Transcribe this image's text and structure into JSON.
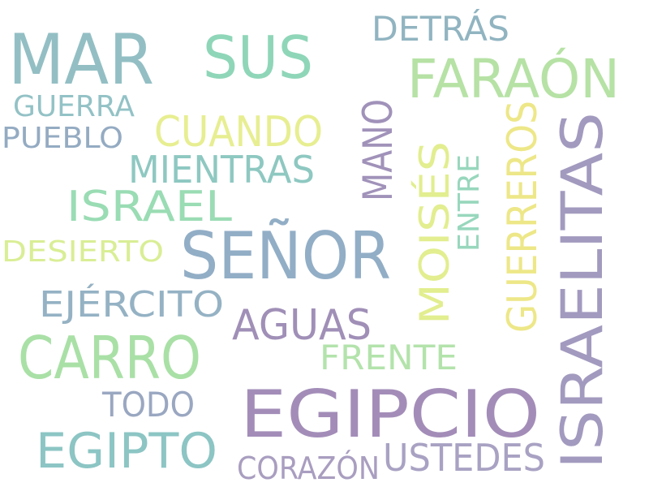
{
  "words": [
    {
      "text": "MAR",
      "color": "#93bfc4"
    },
    {
      "text": "SUS",
      "color": "#8fd6b8"
    },
    {
      "text": "DETRÁS",
      "color": "#91b4c1"
    },
    {
      "text": "FARAÓN",
      "color": "#b6e2a5"
    },
    {
      "text": "GUERRA",
      "color": "#93c2c6"
    },
    {
      "text": "PUEBLO",
      "color": "#94abc2"
    },
    {
      "text": "CUANDO",
      "color": "#e7ee91"
    },
    {
      "text": "MIENTRAS",
      "color": "#8ec8c1"
    },
    {
      "text": "MANO",
      "color": "#a092b9"
    },
    {
      "text": "GUERREROS",
      "color": "#ede788"
    },
    {
      "text": "ISRAELITAS",
      "color": "#a39abf"
    },
    {
      "text": "ISRAEL",
      "color": "#9adcb4"
    },
    {
      "text": "MOISÉS",
      "color": "#e2ee8f"
    },
    {
      "text": "ENTRE",
      "color": "#98d7bd"
    },
    {
      "text": "DESIERTO",
      "color": "#d9ee95"
    },
    {
      "text": "SEÑOR",
      "color": "#92aec6"
    },
    {
      "text": "EJÉRCITO",
      "color": "#95b2c4"
    },
    {
      "text": "AGUAS",
      "color": "#a08fb7"
    },
    {
      "text": "CARRO",
      "color": "#a9e0a6"
    },
    {
      "text": "FRENTE",
      "color": "#b3e3ab"
    },
    {
      "text": "TODO",
      "color": "#9aa7c1"
    },
    {
      "text": "EGIPCIO",
      "color": "#a38db8"
    },
    {
      "text": "EGIPTO",
      "color": "#8cc5c4"
    },
    {
      "text": "USTEDES",
      "color": "#a9a2c3"
    },
    {
      "text": "CORAZÓN",
      "color": "#a99ec0"
    }
  ]
}
